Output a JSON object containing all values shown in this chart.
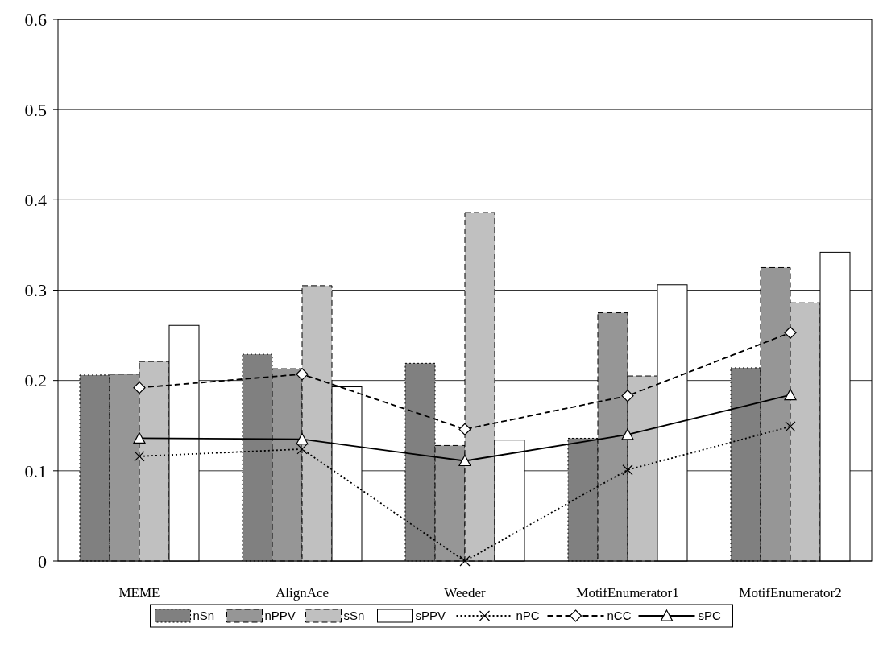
{
  "chart_data": {
    "type": "bar",
    "categories": [
      "MEME",
      "AlignAce",
      "Weeder",
      "MotifEnumerator1",
      "MotifEnumerator2"
    ],
    "series": [
      {
        "name": "nSn",
        "color": "#808080",
        "line_style": "dotted",
        "values": [
          0.206,
          0.229,
          0.219,
          0.136,
          0.214
        ]
      },
      {
        "name": "nPPV",
        "color": "#969696",
        "line_style": "dashed",
        "values": [
          0.207,
          0.213,
          0.128,
          0.275,
          0.325
        ]
      },
      {
        "name": "sSn",
        "color": "#c0c0c0",
        "line_style": "dashed",
        "values": [
          0.221,
          0.305,
          0.386,
          0.205,
          0.286
        ]
      },
      {
        "name": "sPPV",
        "color": "#ffffff",
        "line_style": "solid",
        "values": [
          0.261,
          0.193,
          0.134,
          0.306,
          0.342
        ]
      },
      {
        "name": "nPC",
        "type": "line",
        "color": "#000000",
        "marker": "cross",
        "line_style": "dotted",
        "values": [
          0.116,
          0.124,
          0.0,
          0.101,
          0.149
        ]
      },
      {
        "name": "nCC",
        "type": "line",
        "color": "#000000",
        "marker": "diamond",
        "line_style": "dashed",
        "values": [
          0.192,
          0.207,
          0.146,
          0.183,
          0.253
        ]
      },
      {
        "name": "sPC",
        "type": "line",
        "color": "#000000",
        "marker": "triangle",
        "line_style": "solid",
        "values": [
          0.136,
          0.135,
          0.111,
          0.14,
          0.184
        ]
      }
    ],
    "ylim": [
      0,
      0.6
    ],
    "yticks": [
      0,
      0.1,
      0.2,
      0.3,
      0.4,
      0.5,
      0.6
    ],
    "grid": "y",
    "legend": "bottom"
  }
}
